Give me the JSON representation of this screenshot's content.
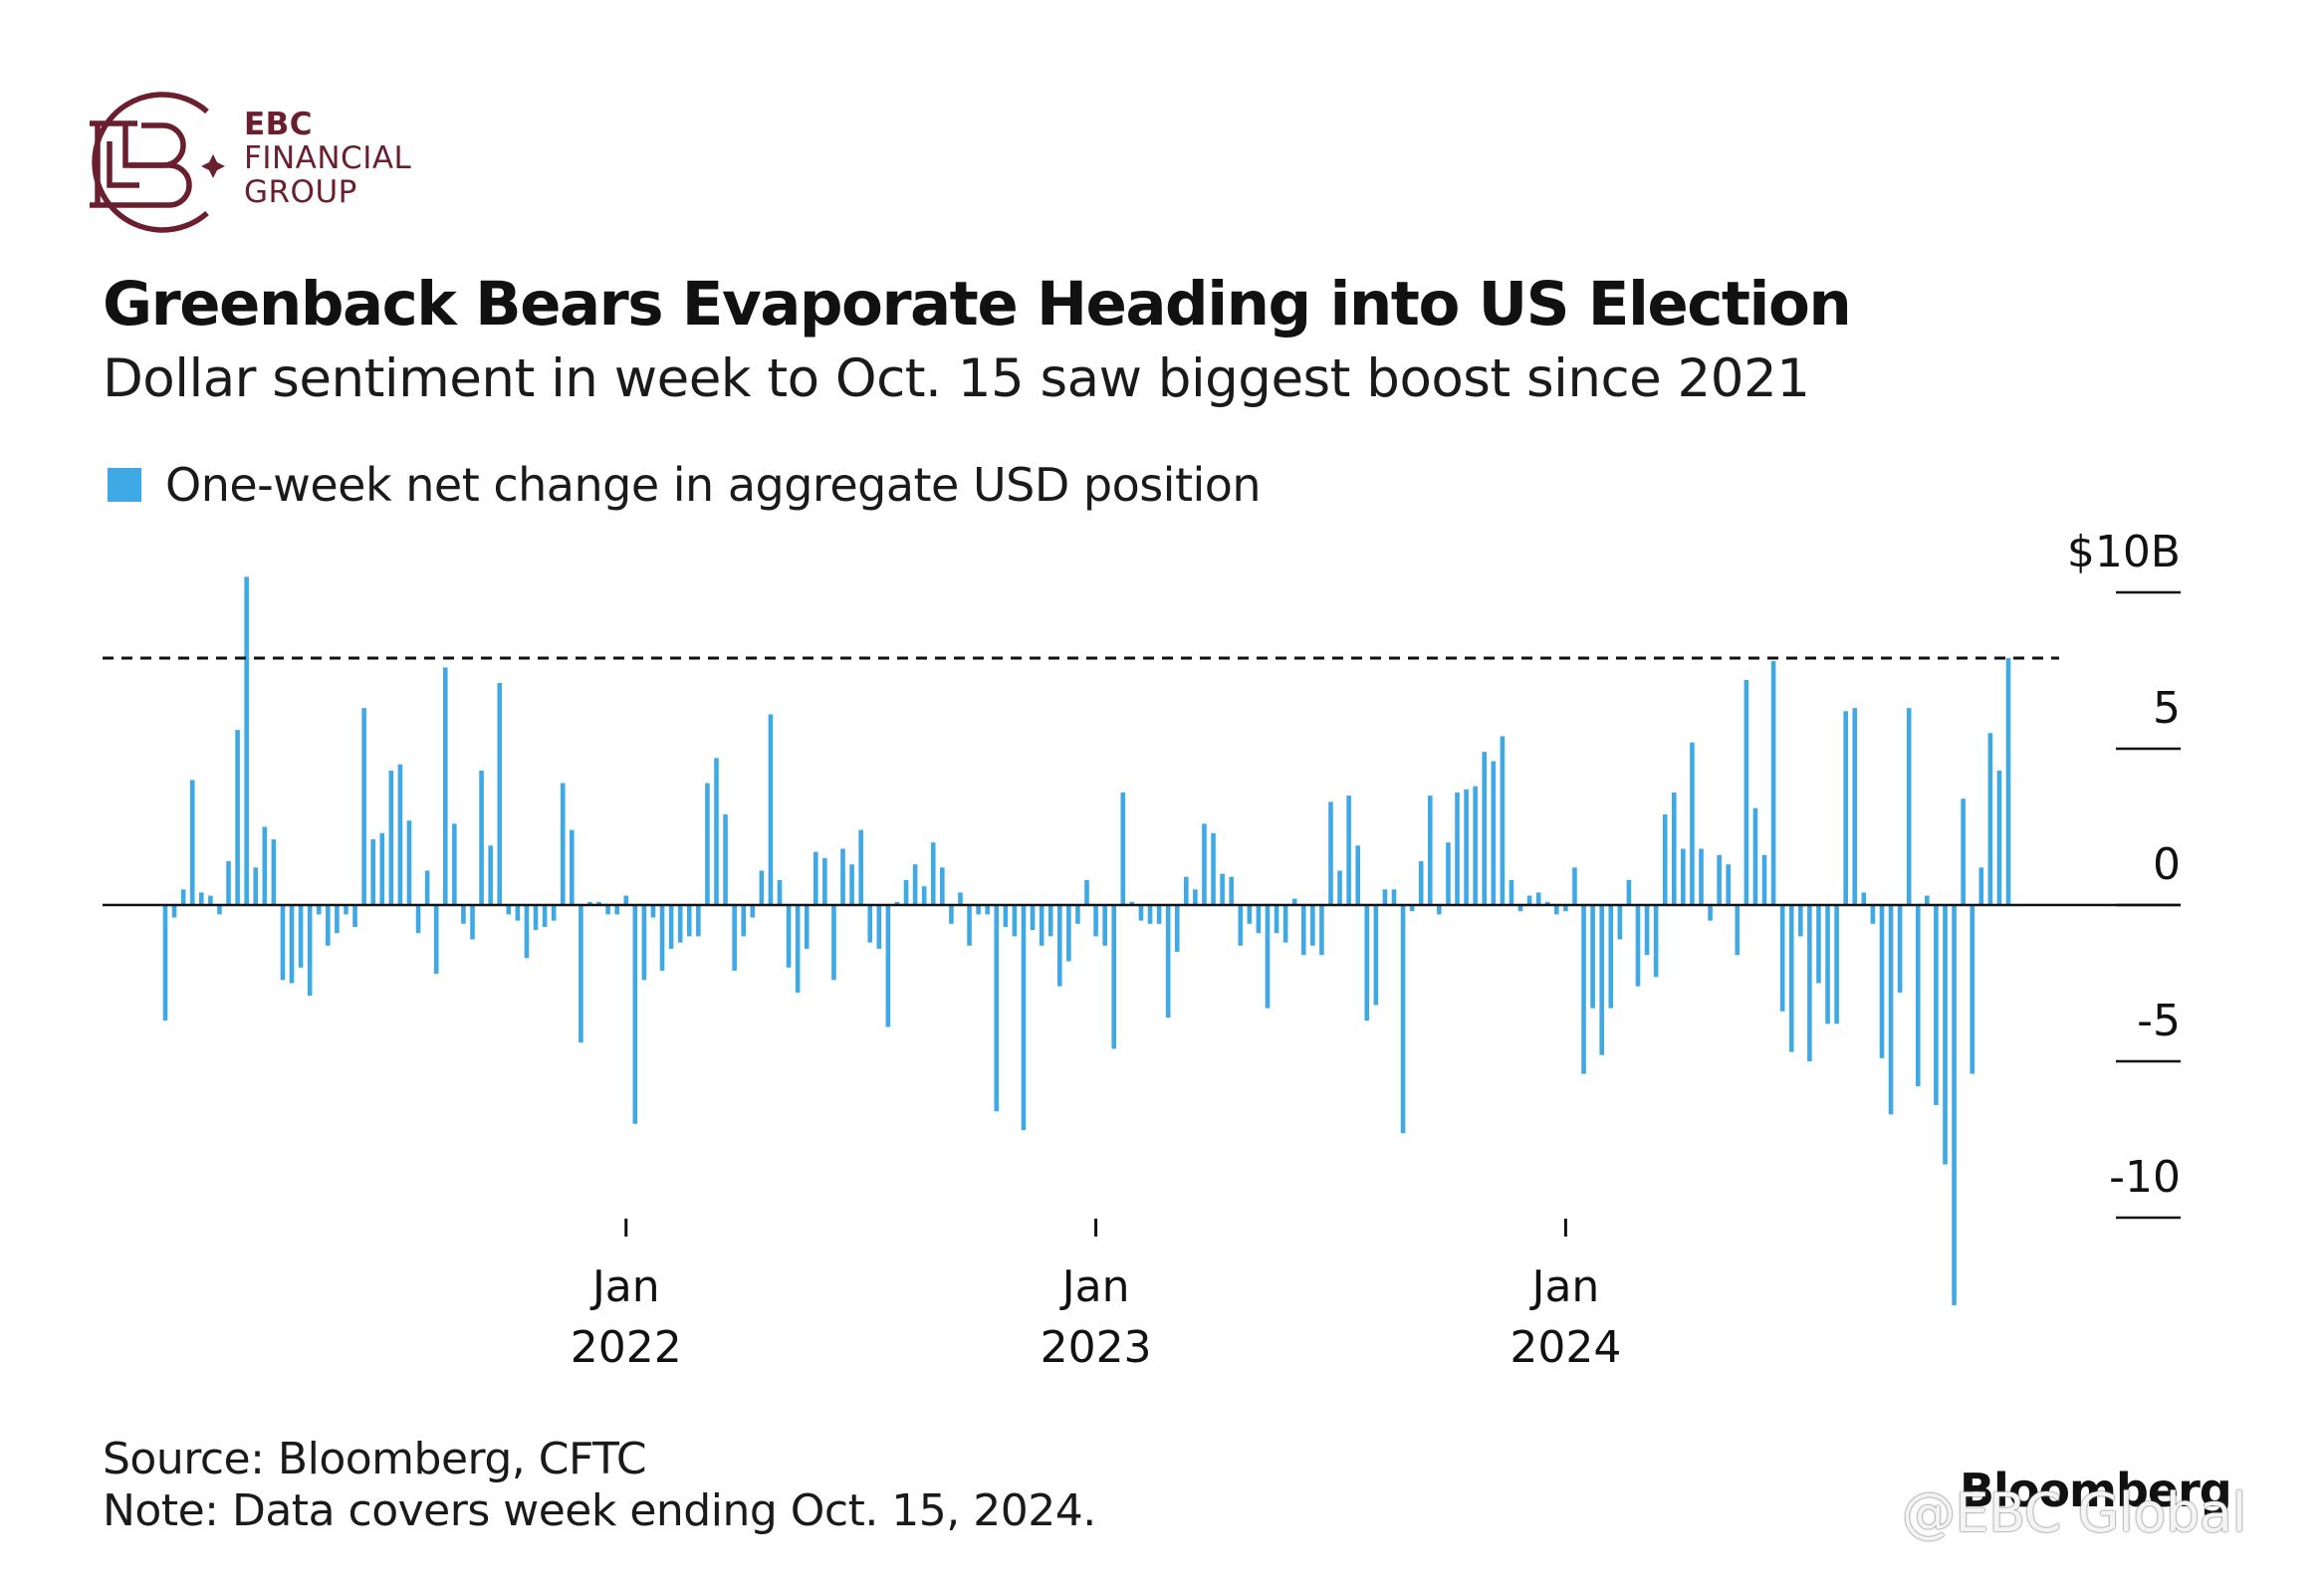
{
  "brand": {
    "line1": "EBC",
    "line2": "FINANCIAL",
    "line3": "GROUP",
    "color": "#6b1f2e"
  },
  "title": "Greenback Bears Evaporate Heading into US Election",
  "subtitle": "Dollar sentiment in week to Oct. 15 saw biggest boost since 2021",
  "legend": {
    "label": "One-week net change in aggregate USD position",
    "color": "#3fa9e6"
  },
  "source": {
    "line1": "Source: Bloomberg, CFTC",
    "line2": "Note: Data covers week ending Oct. 15, 2024."
  },
  "watermark": {
    "brand": "Bloomberg",
    "handle": "@EBC Global"
  },
  "chart_data": {
    "type": "bar",
    "series": [
      {
        "name": "One-week net change in aggregate USD position"
      }
    ],
    "y_unit": "$B",
    "ylim": [
      -13,
      10
    ],
    "y_ticks": [
      {
        "value": 10,
        "label": "$10B"
      },
      {
        "value": 5,
        "label": "5"
      },
      {
        "value": 0,
        "label": "0"
      },
      {
        "value": -5,
        "label": "-5"
      },
      {
        "value": -10,
        "label": "-10"
      }
    ],
    "x_ticks": [
      {
        "label": "Jan",
        "sublabel": "2022",
        "week_index": 51
      },
      {
        "label": "Jan",
        "sublabel": "2023",
        "week_index": 103
      },
      {
        "label": "Jan",
        "sublabel": "2024",
        "week_index": 155
      }
    ],
    "reference_line": {
      "value": 7.9,
      "style": "dashed"
    },
    "start_week": "2021-02-02",
    "end_week": "2024-10-15",
    "values": [
      -3.7,
      -0.4,
      0.5,
      4.0,
      0.4,
      0.3,
      -0.3,
      1.4,
      5.6,
      10.5,
      1.2,
      2.5,
      2.1,
      -2.4,
      -2.5,
      -2.0,
      -2.9,
      -0.3,
      -1.3,
      -0.9,
      -0.3,
      -0.7,
      6.3,
      2.1,
      2.3,
      4.3,
      4.5,
      2.7,
      -0.9,
      1.1,
      -2.2,
      7.6,
      2.6,
      -0.6,
      -1.1,
      4.3,
      1.9,
      7.1,
      -0.3,
      -0.5,
      -1.7,
      -0.8,
      -0.7,
      -0.5,
      3.9,
      2.4,
      -4.4,
      0.1,
      0.1,
      -0.3,
      -0.3,
      0.3,
      -7.0,
      -2.4,
      -0.4,
      -2.1,
      -1.4,
      -1.2,
      -1.0,
      -1.0,
      3.9,
      4.7,
      2.9,
      -2.1,
      -1.0,
      -0.4,
      1.1,
      6.1,
      0.8,
      -2.0,
      -2.8,
      -1.4,
      1.7,
      1.5,
      -2.4,
      1.8,
      1.3,
      2.4,
      -1.2,
      -1.4,
      -3.9,
      0.1,
      0.8,
      1.3,
      0.6,
      2.0,
      1.2,
      -0.6,
      0.4,
      -1.3,
      -0.3,
      -0.3,
      -6.6,
      -0.7,
      -1.0,
      -7.2,
      -0.8,
      -1.3,
      -1.0,
      -2.6,
      -1.8,
      -0.6,
      0.8,
      -1.0,
      -1.3,
      -4.6,
      3.6,
      0.1,
      -0.5,
      -0.6,
      -0.6,
      -3.6,
      -1.5,
      0.9,
      0.5,
      2.6,
      2.3,
      1.0,
      0.9,
      -1.3,
      -0.6,
      -0.9,
      -3.3,
      -0.9,
      -1.2,
      0.2,
      -1.6,
      -1.3,
      -1.6,
      3.3,
      1.1,
      3.5,
      1.9,
      -3.7,
      -3.2,
      0.5,
      0.5,
      -7.3,
      -0.2,
      1.4,
      3.5,
      -0.3,
      2.0,
      3.6,
      3.7,
      3.8,
      4.9,
      4.6,
      5.4,
      0.8,
      -0.2,
      0.3,
      0.4,
      0.1,
      -0.3,
      -0.2,
      1.2,
      -5.4,
      -3.3,
      -4.8,
      -3.3,
      -1.1,
      0.8,
      -2.6,
      -1.6,
      -2.3,
      2.9,
      3.6,
      1.8,
      5.2,
      1.8,
      -0.5,
      1.6,
      1.3,
      -1.6,
      7.2,
      3.1,
      1.6,
      7.8,
      -3.4,
      -4.7,
      -1.0,
      -5.0,
      -2.5,
      -3.8,
      -3.8,
      6.2,
      6.3,
      0.4,
      -0.6,
      -4.9,
      -6.7,
      -2.8,
      6.3,
      -5.8,
      0.3,
      -6.4,
      -8.3,
      -12.8,
      3.4,
      -5.4,
      1.2,
      5.5,
      4.3,
      7.9
    ]
  }
}
